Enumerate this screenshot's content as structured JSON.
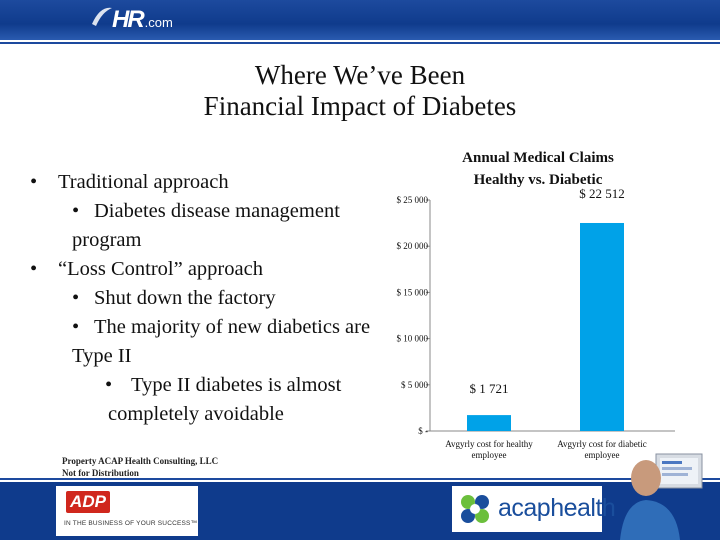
{
  "header": {
    "logo_main": "HR",
    "logo_suffix": ".com"
  },
  "slide_title": {
    "line1": "Where We’ve Been",
    "line2": "Financial Impact of Diabetes"
  },
  "bullets": [
    {
      "level": 1,
      "text": "Traditional approach"
    },
    {
      "level": 2,
      "text": "Diabetes disease management program"
    },
    {
      "level": 1,
      "text": "“Loss Control” approach"
    },
    {
      "level": 2,
      "text": "Shut down the factory"
    },
    {
      "level": 2,
      "text": "The majority of new diabetics are Type II"
    },
    {
      "level": 3,
      "text": "Type II diabetes is almost completely avoidable"
    }
  ],
  "footnote": {
    "line1": "Property ACAP Health Consulting, LLC",
    "line2": "Not for Distribution"
  },
  "footer": {
    "adp_logo": "ADP",
    "adp_tagline": "IN THE BUSINESS OF YOUR SUCCESS™",
    "acap_logo": "acaphealth"
  },
  "colors": {
    "bar": "#00a2e8",
    "banner": "#0f3b8c"
  },
  "chart_data": {
    "type": "bar",
    "title": "Annual Medical Claims Healthy vs. Diabetic",
    "title_lines": [
      "Annual Medical Claims",
      "Healthy vs. Diabetic"
    ],
    "categories": [
      "Avgyrly cost for healthy employee",
      "Avgyrly cost for diabetic employee"
    ],
    "category_lines": [
      [
        "Avgyrly cost for healthy",
        "employee"
      ],
      [
        "Avgyrly cost for diabetic",
        "employee"
      ]
    ],
    "values": [
      1721,
      22512
    ],
    "data_labels": [
      "$ 1 721",
      "$ 22 512"
    ],
    "yticks": [
      0,
      5000,
      10000,
      15000,
      20000,
      25000
    ],
    "ytick_labels": [
      "$ -",
      "$ 5 000",
      "$ 10 000",
      "$ 15 000",
      "$ 20 000",
      "$ 25 000"
    ],
    "ylim": [
      0,
      25000
    ],
    "grid": false,
    "legend": "none"
  }
}
